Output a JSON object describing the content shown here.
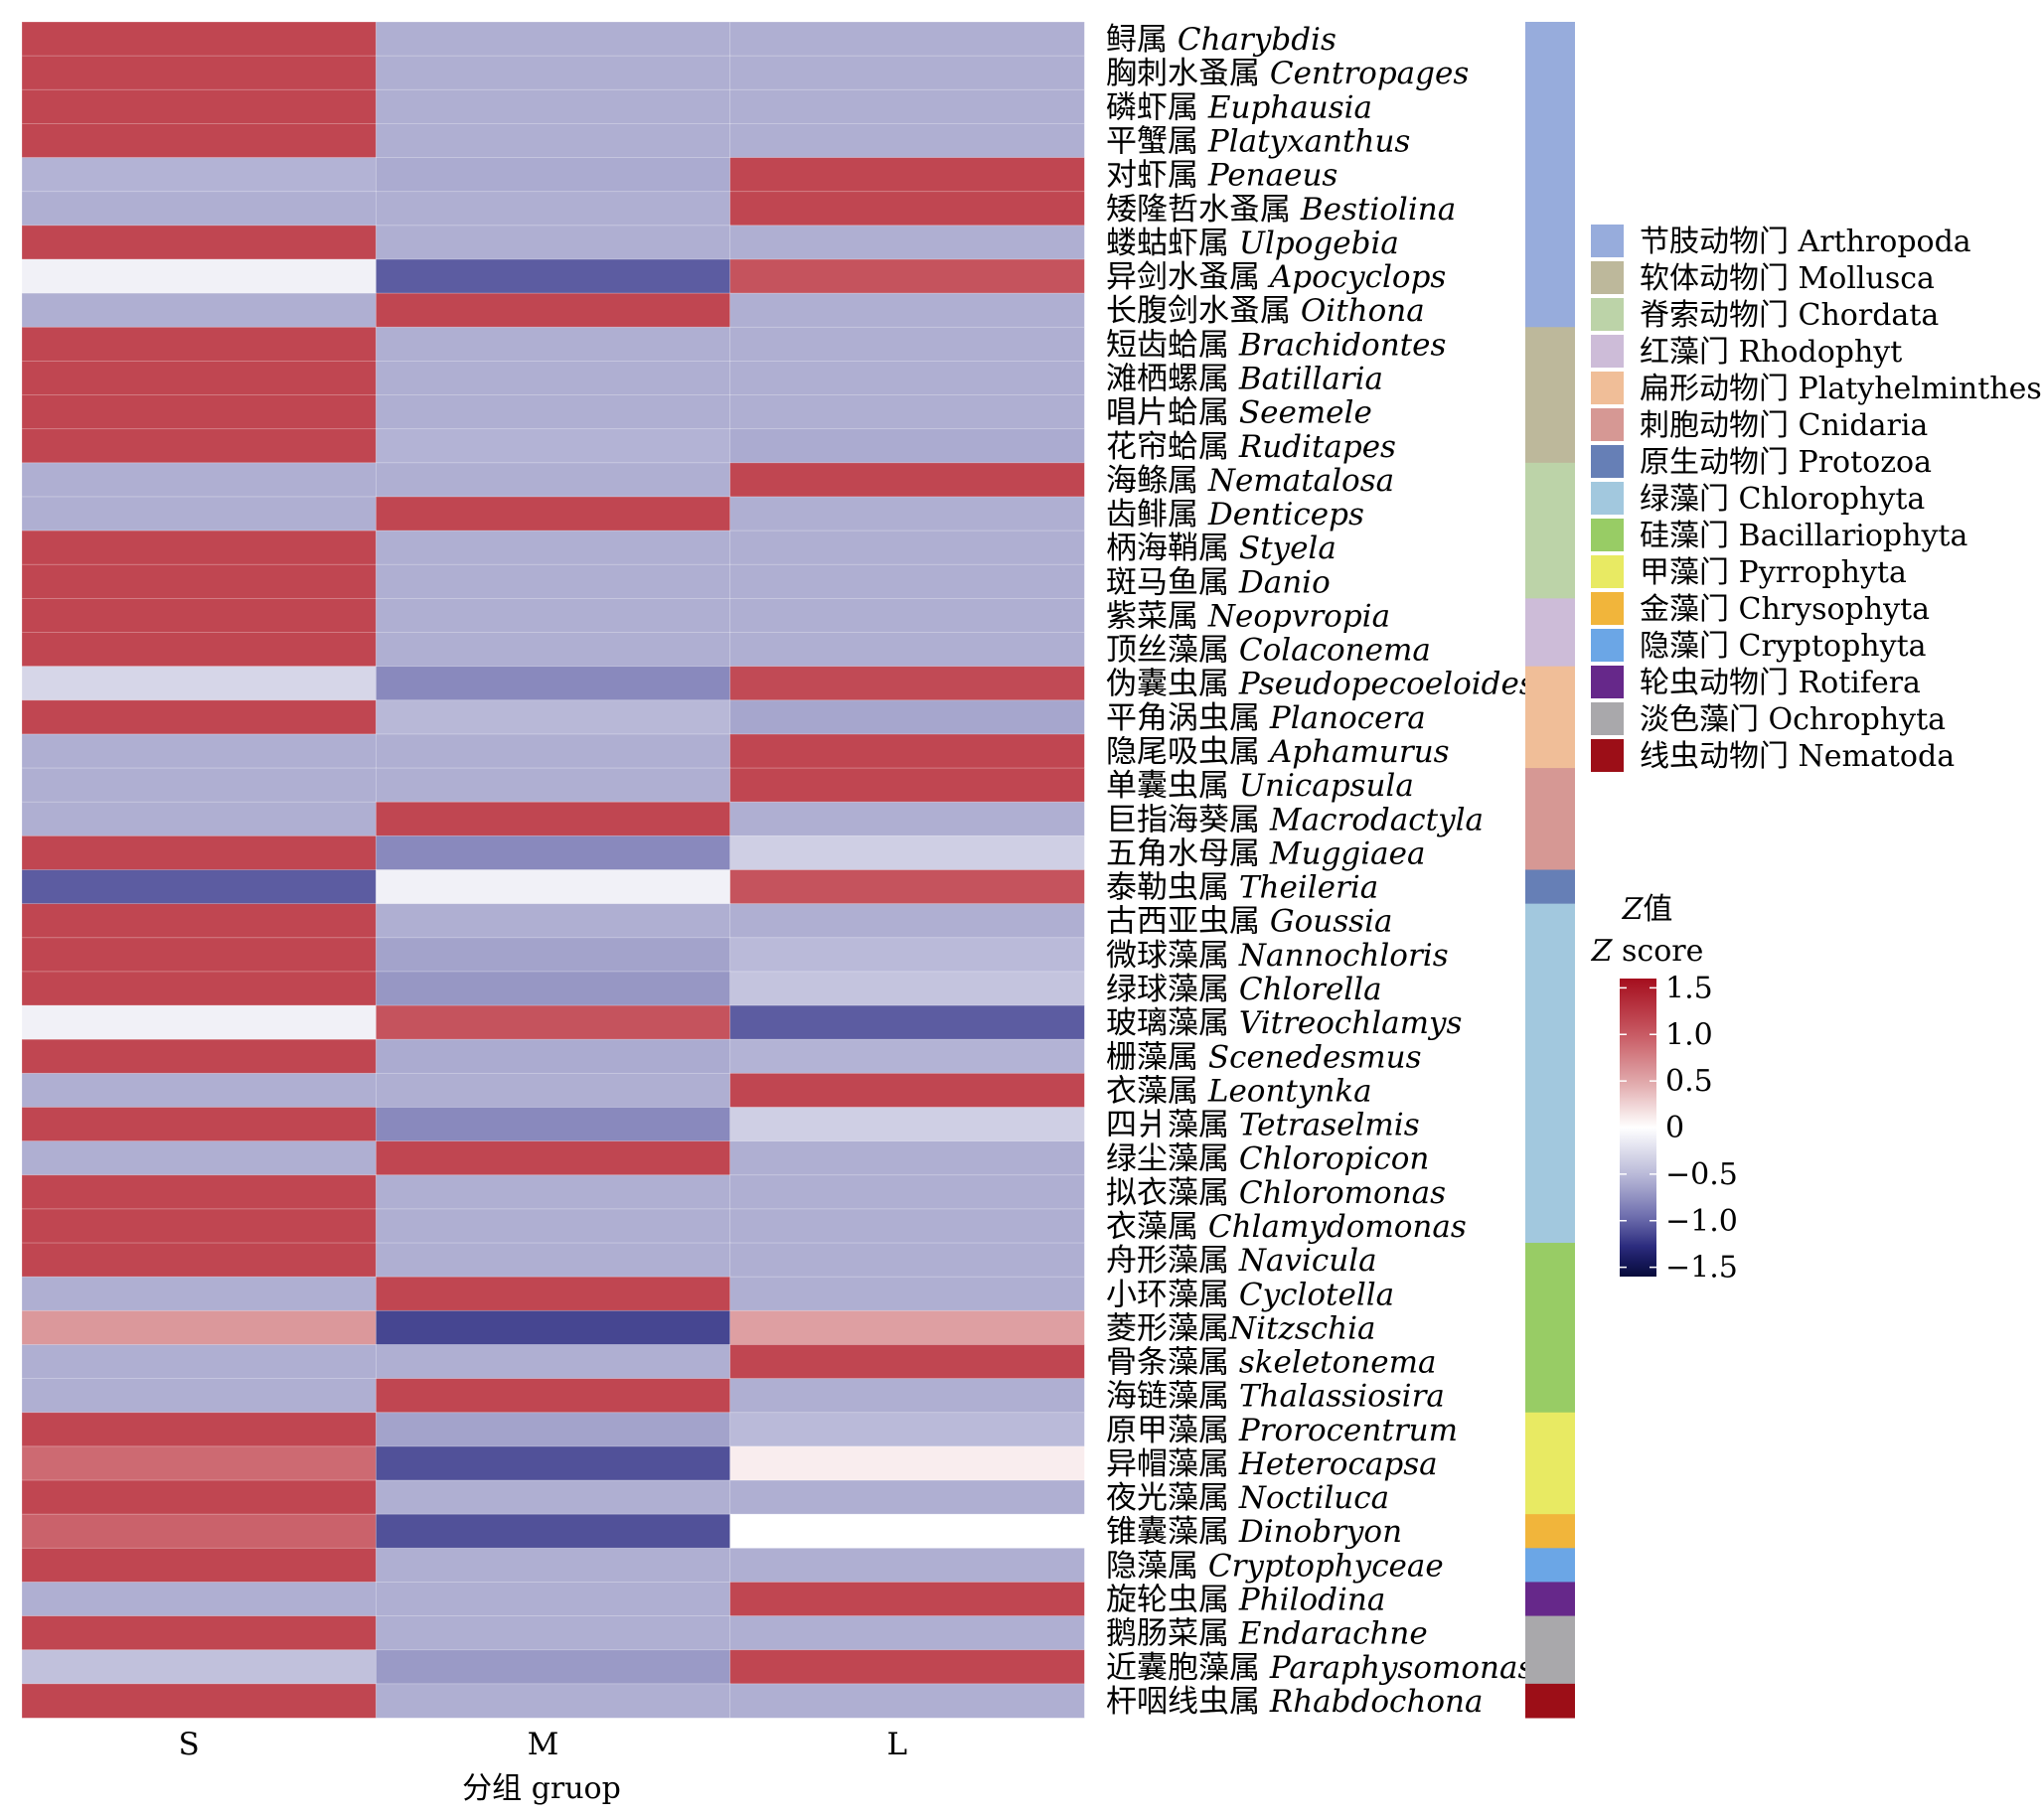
{
  "chart_data": {
    "type": "heatmap",
    "columns": [
      "S",
      "M",
      "L"
    ],
    "xlabel": "分组 gruop",
    "colorbar": {
      "title_line1": "Z值",
      "title_line2": "Z score",
      "ticks": [
        1.5,
        1.0,
        0.5,
        0,
        -0.5,
        -1.0,
        -1.5
      ],
      "tick_labels": [
        "1.5",
        "1.0",
        "0.5",
        "0",
        "−0.5",
        "−1.0",
        "−1.5"
      ],
      "range": [
        -1.6,
        1.6
      ],
      "colors": {
        "low": "#070b3a",
        "mid": "#ffffff",
        "high": "#a50e1e"
      }
    },
    "rows": [
      {
        "zh": "鲟属 ",
        "la": "Charybdis",
        "phylum": 0,
        "values": [
          1.15,
          -0.58,
          -0.58
        ]
      },
      {
        "zh": "胸刺水蚤属 ",
        "la": "Centropages",
        "phylum": 0,
        "values": [
          1.15,
          -0.58,
          -0.58
        ]
      },
      {
        "zh": "磷虾属 ",
        "la": "Euphausia",
        "phylum": 0,
        "values": [
          1.15,
          -0.58,
          -0.58
        ]
      },
      {
        "zh": "平蟹属 ",
        "la": "Platyxanthus",
        "phylum": 0,
        "values": [
          1.15,
          -0.58,
          -0.58
        ]
      },
      {
        "zh": "对虾属 ",
        "la": "Penaeus",
        "phylum": 0,
        "values": [
          -0.55,
          -0.6,
          1.15
        ]
      },
      {
        "zh": "矮隆哲水蚤属 ",
        "la": "Bestiolina",
        "phylum": 0,
        "values": [
          -0.58,
          -0.58,
          1.15
        ]
      },
      {
        "zh": "蝼蛄虾属 ",
        "la": "Ulpogebia",
        "phylum": 0,
        "values": [
          1.15,
          -0.58,
          -0.58
        ]
      },
      {
        "zh": "异剑水蚤属 ",
        "la": "Apocyclops",
        "phylum": 0,
        "values": [
          -0.1,
          -1.05,
          1.05
        ]
      },
      {
        "zh": "长腹剑水蚤属 ",
        "la": "Oithona",
        "phylum": 0,
        "values": [
          -0.58,
          1.15,
          -0.58
        ]
      },
      {
        "zh": "短齿蛤属 ",
        "la": "Brachidontes",
        "phylum": 1,
        "values": [
          1.15,
          -0.58,
          -0.58
        ]
      },
      {
        "zh": "滩栖螺属 ",
        "la": "Batillaria",
        "phylum": 1,
        "values": [
          1.15,
          -0.58,
          -0.58
        ]
      },
      {
        "zh": "唱片蛤属 ",
        "la": "Seemele",
        "phylum": 1,
        "values": [
          1.15,
          -0.58,
          -0.58
        ]
      },
      {
        "zh": "花帘蛤属 ",
        "la": "Ruditapes",
        "phylum": 1,
        "values": [
          1.15,
          -0.55,
          -0.6
        ]
      },
      {
        "zh": "海鲦属 ",
        "la": "Nematalosa",
        "phylum": 2,
        "values": [
          -0.58,
          -0.58,
          1.15
        ]
      },
      {
        "zh": "齿鲱属 ",
        "la": "Denticeps",
        "phylum": 2,
        "values": [
          -0.58,
          1.15,
          -0.58
        ]
      },
      {
        "zh": "柄海鞘属 ",
        "la": "Styela",
        "phylum": 2,
        "values": [
          1.15,
          -0.58,
          -0.58
        ]
      },
      {
        "zh": "斑马鱼属 ",
        "la": "Danio",
        "phylum": 2,
        "values": [
          1.15,
          -0.58,
          -0.58
        ]
      },
      {
        "zh": "紫菜属 ",
        "la": "Neopvropia",
        "phylum": 3,
        "values": [
          1.15,
          -0.58,
          -0.58
        ]
      },
      {
        "zh": "顶丝藻属 ",
        "la": "Colaconema",
        "phylum": 3,
        "values": [
          1.15,
          -0.58,
          -0.58
        ]
      },
      {
        "zh": "伪囊虫属 ",
        "la": "Pseudopecoeloides",
        "phylum": 4,
        "values": [
          -0.3,
          -0.8,
          1.12
        ]
      },
      {
        "zh": "平角涡虫属 ",
        "la": "Planocera",
        "phylum": 4,
        "values": [
          1.15,
          -0.52,
          -0.63
        ]
      },
      {
        "zh": "隐尾吸虫属 ",
        "la": "Aphamurus",
        "phylum": 4,
        "values": [
          -0.58,
          -0.58,
          1.15
        ]
      },
      {
        "zh": "单囊虫属 ",
        "la": "Unicapsula",
        "phylum": 5,
        "values": [
          -0.58,
          -0.58,
          1.15
        ]
      },
      {
        "zh": "巨指海葵属 ",
        "la": "Macrodactyla",
        "phylum": 5,
        "values": [
          -0.58,
          1.15,
          -0.58
        ]
      },
      {
        "zh": "五角水母属 ",
        "la": "Muggiaea",
        "phylum": 5,
        "values": [
          1.15,
          -0.8,
          -0.35
        ]
      },
      {
        "zh": "泰勒虫属 ",
        "la": "Theileria",
        "phylum": 6,
        "values": [
          -1.05,
          -0.1,
          1.05
        ]
      },
      {
        "zh": "古西亚虫属 ",
        "la": "Goussia",
        "phylum": 7,
        "values": [
          1.15,
          -0.58,
          -0.58
        ]
      },
      {
        "zh": "微球藻属 ",
        "la": "Nannochloris",
        "phylum": 7,
        "values": [
          1.15,
          -0.65,
          -0.5
        ]
      },
      {
        "zh": "绿球藻属 ",
        "la": "Chlorella",
        "phylum": 7,
        "values": [
          1.15,
          -0.72,
          -0.43
        ]
      },
      {
        "zh": "玻璃藻属 ",
        "la": "Vitreochlamys",
        "phylum": 7,
        "values": [
          -0.1,
          1.05,
          -1.05
        ]
      },
      {
        "zh": "栅藻属 ",
        "la": "Scenedesmus",
        "phylum": 7,
        "values": [
          1.15,
          -0.6,
          -0.55
        ]
      },
      {
        "zh": "衣藻属 ",
        "la": "Leontynka",
        "phylum": 7,
        "values": [
          -0.58,
          -0.58,
          1.15
        ]
      },
      {
        "zh": "四爿藻属 ",
        "la": "Tetraselmis",
        "phylum": 7,
        "values": [
          1.15,
          -0.8,
          -0.35
        ]
      },
      {
        "zh": "绿尘藻属 ",
        "la": "Chloropicon",
        "phylum": 7,
        "values": [
          -0.58,
          1.15,
          -0.58
        ]
      },
      {
        "zh": "拟衣藻属 ",
        "la": "Chloromonas",
        "phylum": 7,
        "values": [
          1.15,
          -0.58,
          -0.58
        ]
      },
      {
        "zh": "衣藻属 ",
        "la": "Chlamydomonas",
        "phylum": 7,
        "values": [
          1.15,
          -0.58,
          -0.58
        ]
      },
      {
        "zh": "舟形藻属 ",
        "la": "Navicula",
        "phylum": 8,
        "values": [
          1.15,
          -0.58,
          -0.58
        ]
      },
      {
        "zh": "小环藻属 ",
        "la": "Cyclotella",
        "phylum": 8,
        "values": [
          -0.58,
          1.15,
          -0.58
        ]
      },
      {
        "zh": "菱形藻属",
        "la": "Nitzschia",
        "phylum": 8,
        "values": [
          0.6,
          -1.15,
          0.55
        ]
      },
      {
        "zh": "骨条藻属 ",
        "la": "skeletonema",
        "phylum": 8,
        "values": [
          -0.58,
          -0.58,
          1.15
        ]
      },
      {
        "zh": "海链藻属 ",
        "la": "Thalassiosira",
        "phylum": 8,
        "values": [
          -0.58,
          1.15,
          -0.58
        ]
      },
      {
        "zh": "原甲藻属 ",
        "la": "Prorocentrum",
        "phylum": 9,
        "values": [
          1.15,
          -0.65,
          -0.5
        ]
      },
      {
        "zh": "异帽藻属 ",
        "la": "Heterocapsa",
        "phylum": 9,
        "values": [
          0.9,
          -1.1,
          0.1
        ]
      },
      {
        "zh": "夜光藻属 ",
        "la": "Noctiluca",
        "phylum": 9,
        "values": [
          1.15,
          -0.58,
          -0.58
        ]
      },
      {
        "zh": "锥囊藻属 ",
        "la": "Dinobryon",
        "phylum": 10,
        "values": [
          0.95,
          -1.1,
          0.0
        ]
      },
      {
        "zh": "隐藻属 ",
        "la": "Cryptophyceae",
        "phylum": 11,
        "values": [
          1.15,
          -0.58,
          -0.58
        ]
      },
      {
        "zh": "旋轮虫属 ",
        "la": "Philodina",
        "phylum": 12,
        "values": [
          -0.58,
          -0.58,
          1.15
        ]
      },
      {
        "zh": "鹅肠菜属 ",
        "la": "Endarachne",
        "phylum": 13,
        "values": [
          1.15,
          -0.58,
          -0.58
        ]
      },
      {
        "zh": "近囊胞藻属 ",
        "la": "Paraphysomonas",
        "phylum": 13,
        "values": [
          -0.45,
          -0.7,
          1.15
        ]
      },
      {
        "zh": "杆咽线虫属 ",
        "la": "Rhabdochona",
        "phylum": 14,
        "values": [
          1.15,
          -0.58,
          -0.58
        ]
      }
    ],
    "legend": [
      {
        "label": "节肢动物门 Arthropoda",
        "color": "#97acdc"
      },
      {
        "label": "软体动物门 Mollusca",
        "color": "#bdb89b"
      },
      {
        "label": "脊索动物门 Chordata",
        "color": "#bcd3a8"
      },
      {
        "label": "红藻门 Rhodophyt",
        "color": "#cdbcd8"
      },
      {
        "label": "扁形动物门 Platyhelminthes",
        "color": "#f0be98"
      },
      {
        "label": "刺胞动物门 Cnidaria",
        "color": "#d69894"
      },
      {
        "label": "原生动物门 Protozoa",
        "color": "#667fb6"
      },
      {
        "label": "绿藻门 Chlorophyta",
        "color": "#a2c8de"
      },
      {
        "label": "硅藻门 Bacillariophyta",
        "color": "#98cc65"
      },
      {
        "label": "甲藻门 Pyrrophyta",
        "color": "#e8ea63"
      },
      {
        "label": "金藻门 Chrysophyta",
        "color": "#f1b53b"
      },
      {
        "label": "隐藻门 Cryptophyta",
        "color": "#6ba6e6"
      },
      {
        "label": "轮虫动物门 Rotifera",
        "color": "#66288a"
      },
      {
        "label": "淡色藻门 Ochrophyta",
        "color": "#a9a8ab"
      },
      {
        "label": "线虫动物门 Nematoda",
        "color": "#9c0e17"
      }
    ]
  }
}
